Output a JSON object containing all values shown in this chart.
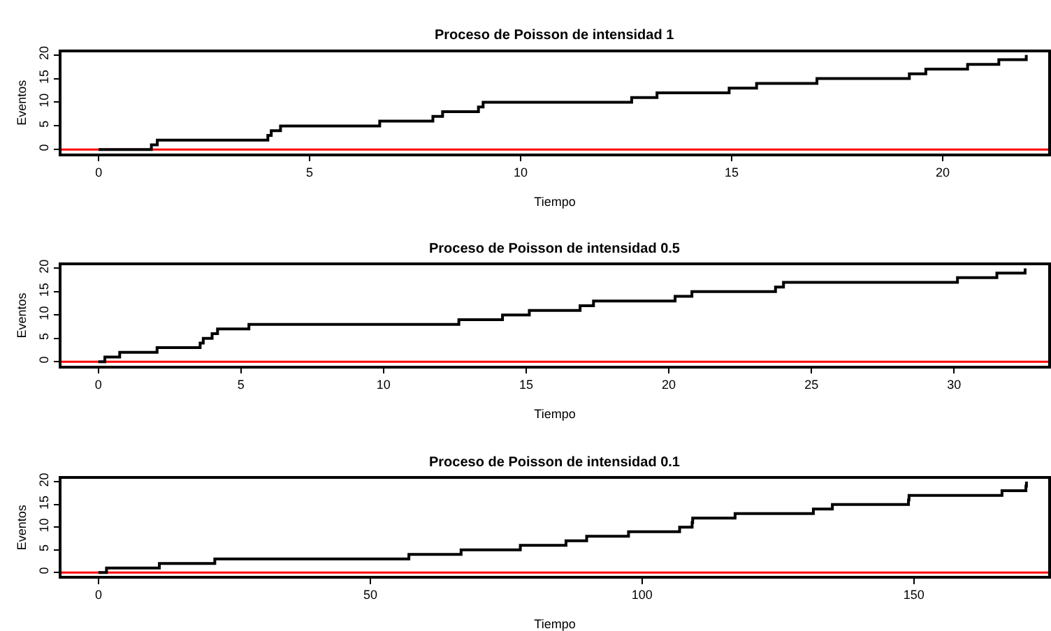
{
  "chart_data": [
    {
      "type": "step",
      "title": "Proceso de Poisson de intensidad 1",
      "xlabel": "Tiempo",
      "ylabel": "Eventos",
      "xlim": [
        -0.88,
        22.5
      ],
      "xticks": [
        0,
        5,
        10,
        15,
        20
      ],
      "ylim": [
        -0.8,
        20.6
      ],
      "yticks": [
        0,
        5,
        10,
        15,
        20
      ],
      "grid": false,
      "series": [
        {
          "color": "#000000",
          "x": [
            0,
            1.25,
            1.39,
            4.01,
            4.09,
            4.31,
            6.66,
            7.92,
            8.15,
            9.0,
            9.11,
            12.63,
            13.23,
            14.94,
            15.59,
            17.02,
            19.21,
            19.6,
            20.59,
            21.33,
            21.98
          ],
          "values": [
            0,
            1,
            2,
            3,
            4,
            5,
            6,
            7,
            8,
            9,
            10,
            11,
            12,
            13,
            14,
            15,
            16,
            17,
            18,
            19,
            20
          ]
        }
      ],
      "ref_lines": [
        {
          "axis": "y",
          "value": 0,
          "label": null,
          "color": "#ff0000"
        }
      ]
    },
    {
      "type": "step",
      "title": "Proceso de Poisson de intensidad 0.5",
      "xlabel": "Tiempo",
      "ylabel": "Eventos",
      "xlim": [
        -1.29,
        33.3
      ],
      "xticks": [
        0,
        5,
        10,
        15,
        20,
        25,
        30
      ],
      "ylim": [
        -0.8,
        20.6
      ],
      "yticks": [
        0,
        5,
        10,
        15,
        20
      ],
      "grid": false,
      "series": [
        {
          "color": "#000000",
          "x": [
            0,
            0.23,
            0.75,
            2.06,
            3.57,
            3.68,
            3.99,
            4.18,
            5.28,
            12.64,
            14.17,
            15.11,
            16.89,
            17.36,
            20.22,
            20.81,
            23.74,
            24.02,
            30.12,
            31.5,
            32.49
          ],
          "values": [
            0,
            1,
            2,
            3,
            4,
            5,
            6,
            7,
            8,
            9,
            10,
            11,
            12,
            13,
            14,
            15,
            16,
            17,
            18,
            19,
            20
          ]
        }
      ],
      "ref_lines": [
        {
          "axis": "y",
          "value": 0,
          "label": null,
          "color": "#ff0000"
        }
      ]
    },
    {
      "type": "step",
      "title": "Proceso de Poisson de intensidad 0.1",
      "xlabel": "Tiempo",
      "ylabel": "Eventos",
      "xlim": [
        -6.8,
        174.7
      ],
      "xticks": [
        0,
        50,
        100,
        150
      ],
      "ylim": [
        -0.8,
        20.6
      ],
      "yticks": [
        0,
        5,
        10,
        15,
        20
      ],
      "grid": false,
      "series": [
        {
          "color": "#000000",
          "x": [
            0,
            1.48,
            11.2,
            21.4,
            57.1,
            66.7,
            77.6,
            86.0,
            89.8,
            97.5,
            106.9,
            109.2,
            109.3,
            117.1,
            131.5,
            135.0,
            149.0,
            149.1,
            166.2,
            170.6,
            170.7
          ],
          "values": [
            0,
            1,
            2,
            3,
            4,
            5,
            6,
            7,
            8,
            9,
            10,
            11,
            12,
            13,
            14,
            15,
            16,
            17,
            18,
            19,
            20
          ]
        }
      ],
      "ref_lines": [
        {
          "axis": "y",
          "value": 0,
          "label": null,
          "color": "#ff0000"
        }
      ]
    }
  ]
}
